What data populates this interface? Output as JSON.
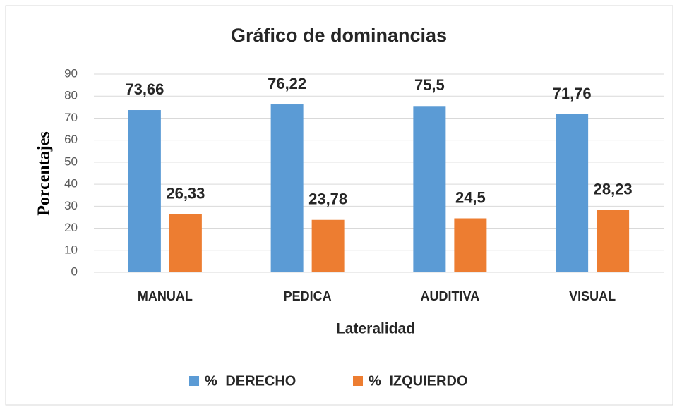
{
  "chart_data": {
    "type": "bar",
    "title": "Gráfico de dominancias",
    "x_label": "Lateralidad",
    "y_label": "Porcentajes",
    "categories": [
      "MANUAL",
      "PEDICA",
      "AUDITIVA",
      "VISUAL"
    ],
    "series": [
      {
        "name": "% DERECHO",
        "color": "#5b9bd5",
        "values": [
          73.66,
          76.22,
          75.5,
          71.76
        ],
        "value_labels": [
          "73,66",
          "76,22",
          "75,5",
          "71,76"
        ]
      },
      {
        "name": "% IZQUIERDO",
        "color": "#ed7d31",
        "values": [
          26.33,
          23.78,
          24.5,
          28.23
        ],
        "value_labels": [
          "26,33",
          "23,78",
          "24,5",
          "28,23"
        ]
      }
    ],
    "ylim": [
      0,
      90
    ],
    "yticks": [
      0,
      10,
      20,
      30,
      40,
      50,
      60,
      70,
      80,
      90
    ],
    "grid": true,
    "legend": "bottom"
  }
}
